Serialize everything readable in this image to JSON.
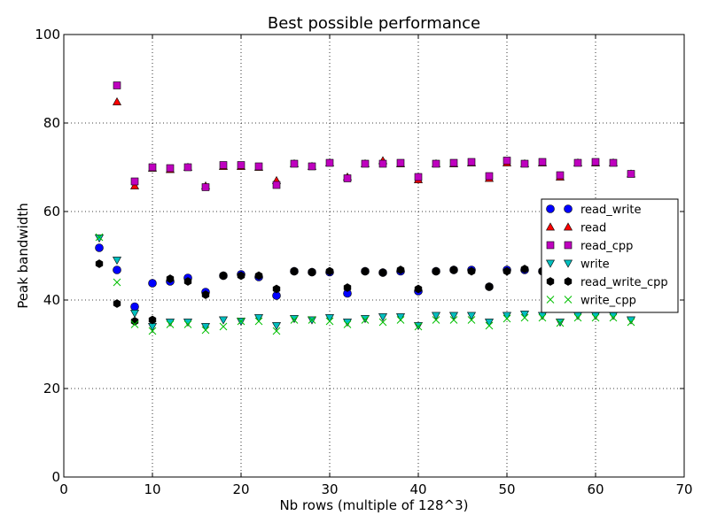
{
  "chart_data": {
    "type": "scatter",
    "title": "Best possible performance",
    "xlabel": "Nb rows (multiple of 128^3)",
    "ylabel": "Peak bandwidth",
    "xlim": [
      0,
      70
    ],
    "ylim": [
      0,
      100
    ],
    "xticks": [
      0,
      10,
      20,
      30,
      40,
      50,
      60,
      70
    ],
    "yticks": [
      0,
      20,
      40,
      60,
      80,
      100
    ],
    "grid": true,
    "legend_position": "right",
    "series": [
      {
        "name": "read_write",
        "marker": "circle",
        "color": "#0000ff",
        "x": [
          4,
          6,
          8,
          10,
          12,
          14,
          16,
          18,
          20,
          22,
          24,
          26,
          28,
          30,
          32,
          34,
          36,
          38,
          40,
          42,
          44,
          46,
          48,
          50,
          52,
          54
        ],
        "y": [
          51.8,
          46.8,
          38.5,
          43.8,
          44.2,
          45.0,
          41.8,
          45.5,
          45.8,
          45.2,
          41.0,
          46.5,
          46.3,
          46.3,
          41.5,
          46.5,
          46.2,
          46.5,
          42.0,
          46.5,
          46.8,
          46.8,
          43.0,
          46.8,
          46.8,
          46.5
        ]
      },
      {
        "name": "read",
        "marker": "triangle-up",
        "color": "#ff0000",
        "x": [
          6,
          8,
          10,
          12,
          14,
          16,
          18,
          20,
          22,
          24,
          26,
          28,
          30,
          32,
          34,
          36,
          38,
          40,
          42,
          44,
          46,
          48,
          50,
          52,
          54,
          56,
          58,
          60,
          62,
          64
        ],
        "y": [
          84.8,
          65.8,
          69.8,
          69.5,
          70.0,
          65.8,
          70.2,
          70.2,
          70.0,
          67.0,
          70.8,
          70.2,
          71.0,
          67.8,
          70.8,
          71.5,
          70.8,
          67.2,
          70.8,
          70.8,
          71.0,
          67.5,
          71.0,
          70.8,
          71.0,
          67.8,
          71.0,
          71.0,
          71.0,
          68.5
        ]
      },
      {
        "name": "read_cpp",
        "marker": "square",
        "color": "#bf00bf",
        "x": [
          6,
          8,
          10,
          12,
          14,
          16,
          18,
          20,
          22,
          24,
          26,
          28,
          30,
          32,
          34,
          36,
          38,
          40,
          42,
          44,
          46,
          48,
          50,
          52,
          54,
          56,
          58,
          60,
          62,
          64
        ],
        "y": [
          88.5,
          66.8,
          70.0,
          69.8,
          70.0,
          65.5,
          70.5,
          70.5,
          70.2,
          66.0,
          70.8,
          70.2,
          71.0,
          67.5,
          70.8,
          70.8,
          71.0,
          67.8,
          70.8,
          71.0,
          71.2,
          68.0,
          71.5,
          70.8,
          71.2,
          68.2,
          71.0,
          71.2,
          71.0,
          68.5
        ]
      },
      {
        "name": "write",
        "marker": "triangle-down",
        "color": "#00bfbf",
        "x": [
          4,
          6,
          8,
          10,
          12,
          14,
          16,
          18,
          20,
          22,
          24,
          26,
          28,
          30,
          32,
          34,
          36,
          38,
          40,
          42,
          44,
          46,
          48,
          50,
          52,
          54,
          56,
          58,
          60,
          62,
          64
        ],
        "y": [
          54.0,
          49.0,
          37.0,
          34.0,
          35.0,
          35.0,
          34.0,
          35.5,
          35.2,
          36.0,
          34.2,
          35.8,
          35.5,
          36.0,
          35.0,
          35.8,
          36.2,
          36.2,
          34.2,
          36.5,
          36.5,
          36.5,
          35.0,
          36.5,
          36.8,
          36.5,
          35.0,
          36.5,
          36.5,
          36.5,
          35.5
        ]
      },
      {
        "name": "read_write_cpp",
        "marker": "hexagon",
        "color": "#000000",
        "x": [
          4,
          6,
          8,
          10,
          12,
          14,
          16,
          18,
          20,
          22,
          24,
          26,
          28,
          30,
          32,
          34,
          36,
          38,
          40,
          42,
          44,
          46,
          48,
          50,
          52,
          54
        ],
        "y": [
          48.2,
          39.2,
          35.2,
          35.5,
          44.8,
          44.2,
          41.2,
          45.5,
          45.5,
          45.5,
          42.5,
          46.5,
          46.3,
          46.5,
          42.8,
          46.5,
          46.2,
          46.8,
          42.5,
          46.5,
          46.8,
          46.5,
          43.0,
          46.5,
          47.0,
          46.5
        ]
      },
      {
        "name": "write_cpp",
        "marker": "x",
        "color": "#00bf00",
        "x": [
          4,
          6,
          8,
          10,
          12,
          14,
          16,
          18,
          20,
          22,
          24,
          26,
          28,
          30,
          32,
          34,
          36,
          38,
          40,
          42,
          44,
          46,
          48,
          50,
          52,
          54,
          56,
          58,
          60,
          62,
          64
        ],
        "y": [
          54.2,
          44.0,
          34.5,
          33.0,
          34.5,
          34.5,
          33.2,
          34.0,
          35.2,
          35.2,
          33.0,
          35.5,
          35.5,
          35.2,
          34.5,
          35.5,
          35.0,
          35.5,
          34.0,
          35.5,
          35.5,
          35.5,
          34.2,
          35.8,
          36.0,
          36.0,
          34.8,
          36.0,
          36.0,
          36.0,
          35.0
        ]
      }
    ]
  }
}
